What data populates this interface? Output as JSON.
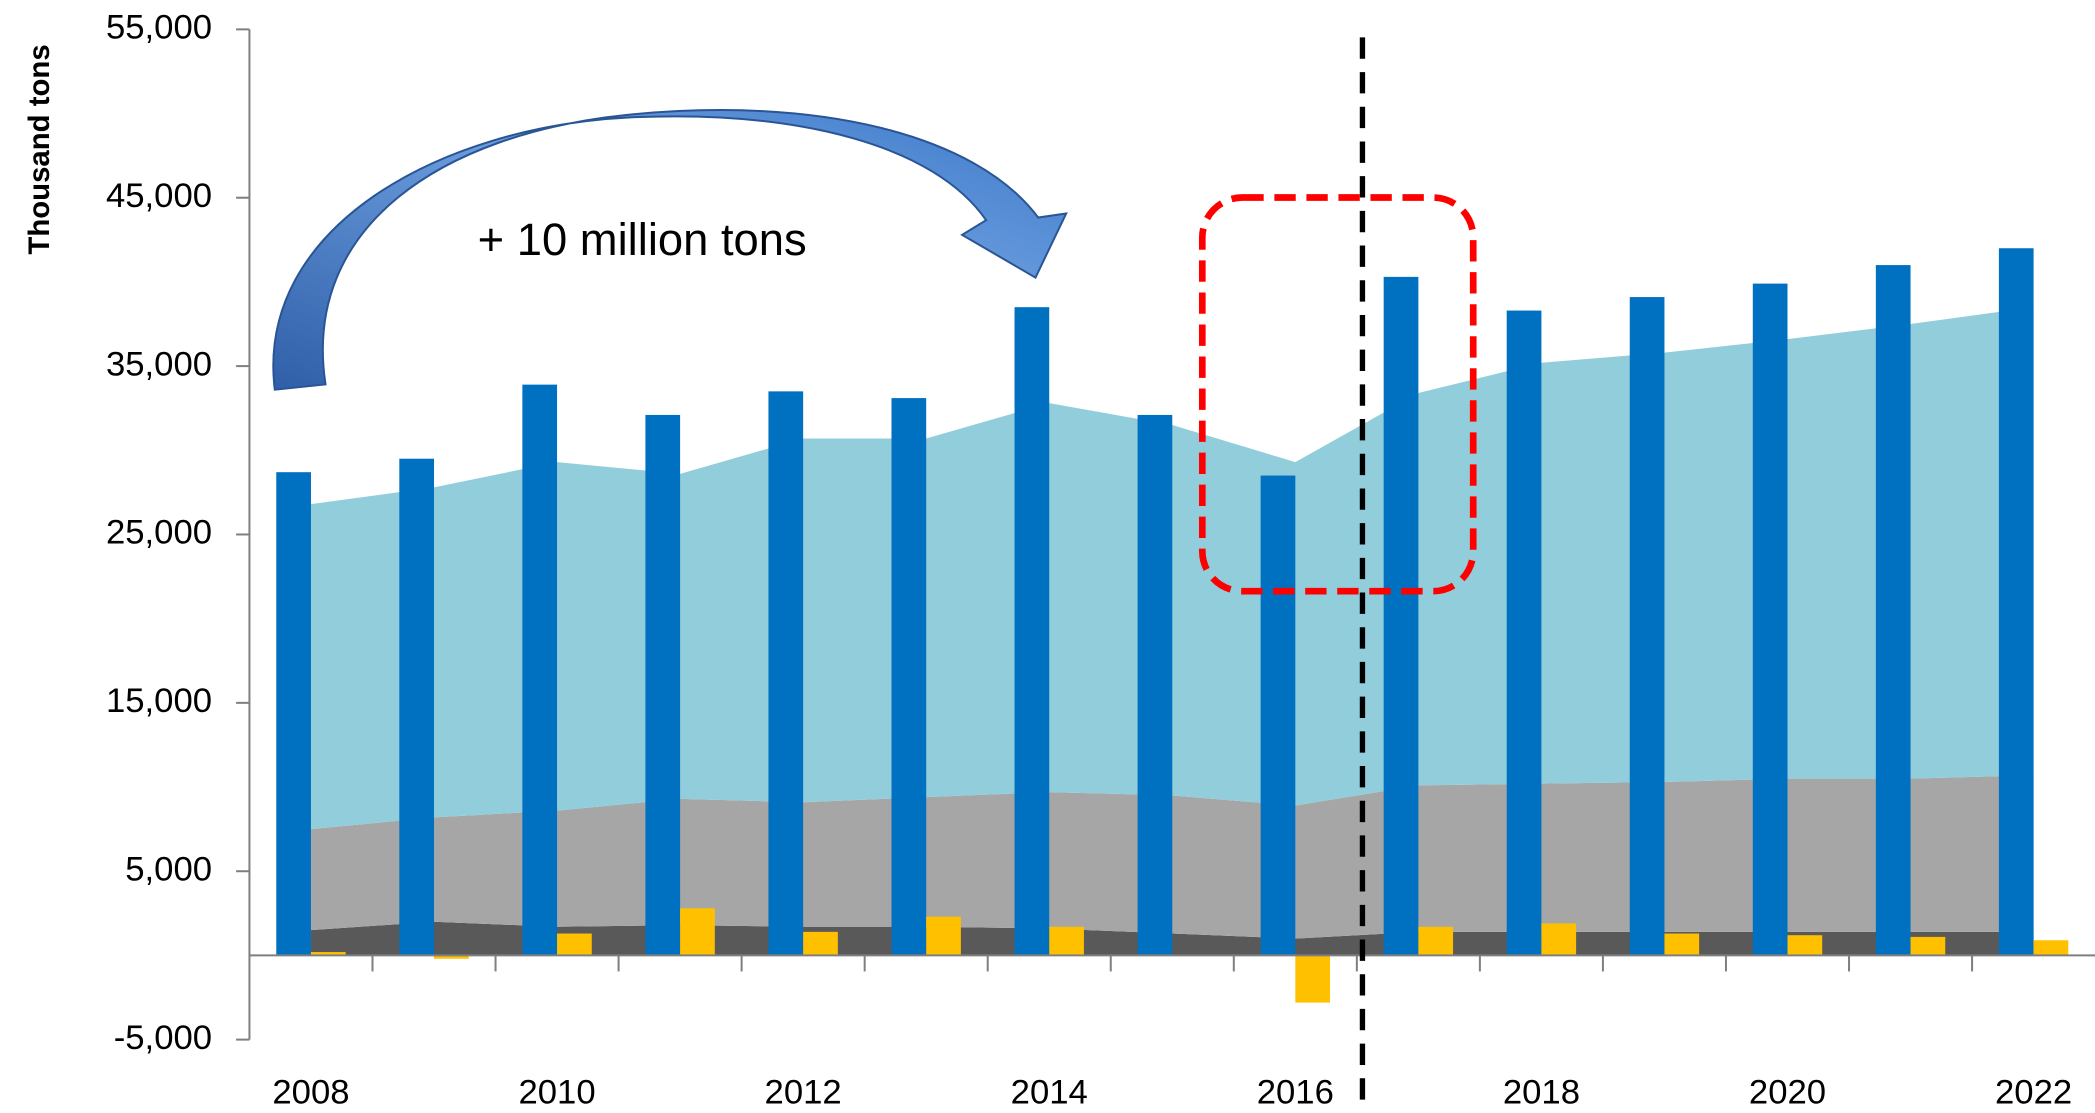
{
  "chart_data": {
    "type": "bar",
    "y_label": "Thousand tons",
    "annotation": "+ 10 million tons",
    "categories": [
      "2008",
      null,
      "2010",
      null,
      "2012",
      null,
      "2014",
      null,
      "2016",
      null,
      "2018",
      null,
      "2020",
      null,
      "2022"
    ],
    "ylim": [
      -5000,
      55000
    ],
    "yticks": [
      {
        "value": -5000,
        "label": "-5,000"
      },
      {
        "value": 5000,
        "label": "5,000"
      },
      {
        "value": 15000,
        "label": "15,000"
      },
      {
        "value": 25000,
        "label": "25,000"
      },
      {
        "value": 35000,
        "label": "35,000"
      },
      {
        "value": 45000,
        "label": "45,000"
      },
      {
        "value": 55000,
        "label": "55,000"
      }
    ],
    "series": [
      {
        "type": "area",
        "color": "#595959",
        "values": [
          1500,
          2000,
          1700,
          1800,
          1700,
          1700,
          1600,
          1300,
          1000,
          1400,
          1400,
          1400,
          1400,
          1400,
          1400
        ]
      },
      {
        "type": "area",
        "color": "#a6a6a6",
        "values": [
          6000,
          6200,
          6900,
          7500,
          7400,
          7700,
          8100,
          8200,
          7900,
          8700,
          8800,
          8900,
          9100,
          9100,
          9300
        ]
      },
      {
        "type": "area",
        "color": "#92cddc",
        "values": [
          19300,
          19600,
          20700,
          19300,
          21600,
          21300,
          23100,
          22000,
          20400,
          23300,
          25000,
          25500,
          26100,
          27000,
          27800
        ]
      },
      {
        "type": "bar",
        "color": "#0070c0",
        "values": [
          28700,
          29500,
          33900,
          32100,
          33500,
          33100,
          38500,
          32100,
          28500,
          40300,
          38300,
          39100,
          39900,
          41000,
          42000
        ]
      },
      {
        "type": "bar",
        "color": "#ffc000",
        "values": [
          200,
          -200,
          1300,
          2800,
          1400,
          2300,
          1700,
          0,
          -2800,
          1700,
          1900,
          1300,
          1200,
          1100,
          900
        ]
      }
    ]
  }
}
